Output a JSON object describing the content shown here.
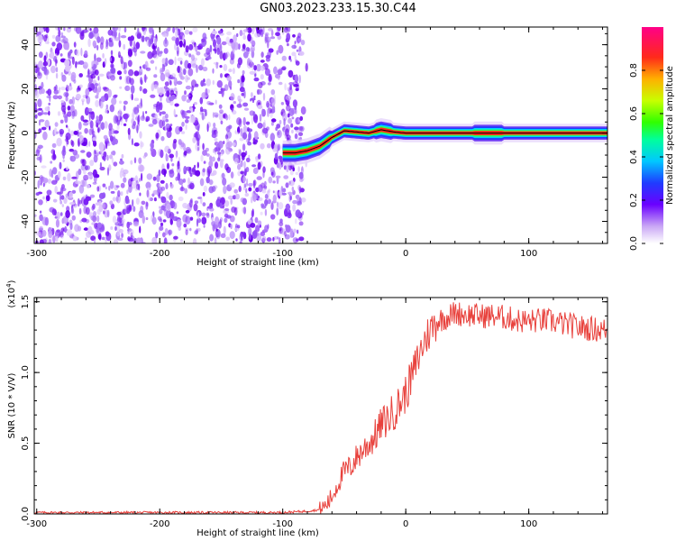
{
  "title": "GN03.2023.233.15.30.C44",
  "chart_data": [
    {
      "type": "heatmap",
      "xlabel": "Height of straight line (km)",
      "ylabel": "Frequency (Hz)",
      "xlim": [
        -302,
        164
      ],
      "ylim": [
        -50,
        48
      ],
      "xticks": [
        -300,
        -200,
        -100,
        0,
        100
      ],
      "xtick_labels": [
        "-300",
        "-200",
        "-100",
        "0",
        "100"
      ],
      "yticks": [
        -40,
        -20,
        0,
        20,
        40
      ],
      "ytick_labels": [
        "-40",
        "-20",
        "0",
        "20",
        "40"
      ],
      "noise_region_x": [
        -302,
        -83
      ],
      "signal_ridge": {
        "x": [
          -100,
          -90,
          -80,
          -70,
          -60,
          -50,
          -40,
          -30,
          -20,
          -10,
          0,
          20,
          40,
          60,
          80,
          100,
          130,
          164
        ],
        "frequency": [
          -9,
          -9,
          -8,
          -6,
          -2,
          1,
          0.5,
          0,
          1.5,
          0.5,
          0,
          0,
          0,
          0,
          0,
          0,
          0,
          0
        ]
      },
      "colorbar": {
        "label": "Normalized spectral amplitude",
        "range": [
          0.0,
          1.0
        ],
        "ticks": [
          0.0,
          0.2,
          0.4,
          0.6,
          0.8
        ],
        "tick_labels": [
          "0.0",
          "0.2",
          "0.4",
          "0.6",
          "0.8"
        ]
      },
      "grid": false,
      "colors": {
        "scale": "rainbow-purple-to-pink",
        "ridge_line": "#000000"
      }
    },
    {
      "type": "line",
      "xlabel": "Height of straight line (km)",
      "ylabel": "SNR (10 * V/V)",
      "scale_label": "(x10",
      "scale_exponent": "4",
      "scale_close": ")",
      "xlim": [
        -302,
        164
      ],
      "ylim": [
        0,
        1.53
      ],
      "xticks": [
        -300,
        -200,
        -100,
        0,
        100
      ],
      "xtick_labels": [
        "-300",
        "-200",
        "-100",
        "0",
        "100"
      ],
      "yticks": [
        0,
        0.5,
        1.0,
        1.5
      ],
      "ytick_labels": [
        "0.0",
        "0.5",
        "1.0",
        "1.5"
      ],
      "series": [
        {
          "color": "#e8413c",
          "x": [
            -302,
            -250,
            -200,
            -150,
            -100,
            -80,
            -70,
            -65,
            -60,
            -55,
            -50,
            -45,
            -40,
            -35,
            -30,
            -25,
            -20,
            -15,
            -10,
            -5,
            0,
            5,
            10,
            15,
            20,
            25,
            30,
            35,
            40,
            50,
            60,
            70,
            80,
            90,
            100,
            110,
            120,
            130,
            140,
            150,
            160,
            164
          ],
          "values": [
            0.01,
            0.01,
            0.01,
            0.01,
            0.01,
            0.02,
            0.03,
            0.06,
            0.12,
            0.22,
            0.3,
            0.33,
            0.4,
            0.45,
            0.5,
            0.55,
            0.63,
            0.67,
            0.72,
            0.78,
            0.85,
            0.97,
            1.1,
            1.22,
            1.3,
            1.36,
            1.38,
            1.4,
            1.42,
            1.41,
            1.4,
            1.4,
            1.39,
            1.37,
            1.36,
            1.37,
            1.36,
            1.34,
            1.32,
            1.31,
            1.3,
            1.3
          ]
        }
      ],
      "grid": false
    }
  ]
}
